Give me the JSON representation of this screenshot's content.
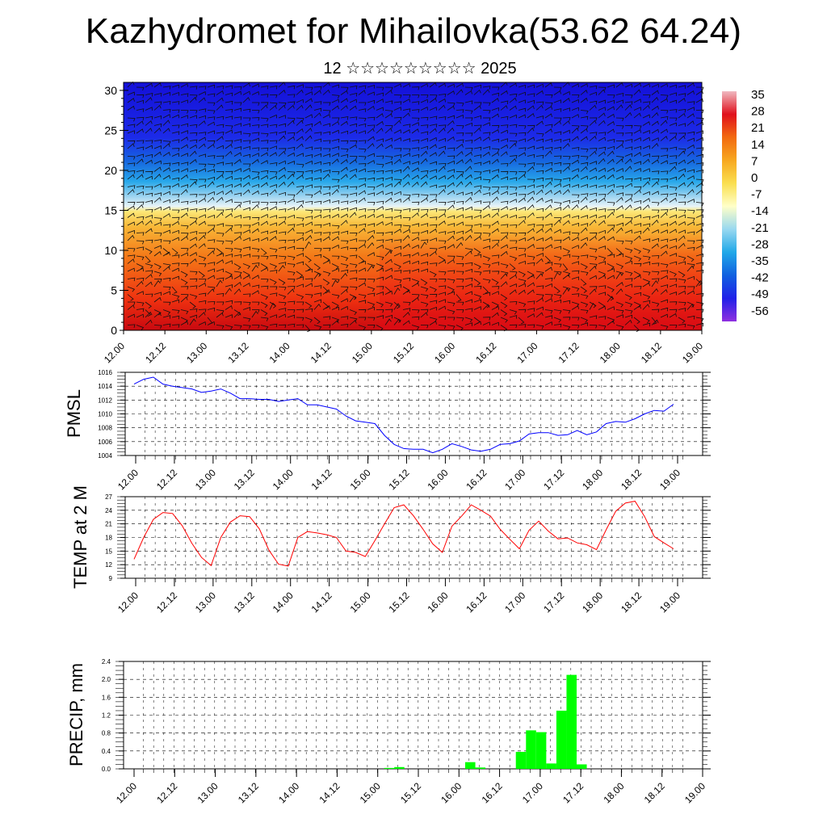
{
  "title": "Kazhydromet for Mihailovka(53.62 64.24)",
  "subtitle": "12 ☆☆☆☆☆☆☆☆☆ 2025",
  "time_labels": [
    "12.00",
    "12.12",
    "13.00",
    "13.12",
    "14.00",
    "14.12",
    "15.00",
    "15.12",
    "16.00",
    "16.12",
    "17.00",
    "17.12",
    "18.00",
    "18.12",
    "19.00"
  ],
  "chart_data": [
    {
      "type": "heatmap",
      "name_hidden": true,
      "x_ticks": [
        "12.00",
        "12.12",
        "13.00",
        "13.12",
        "14.00",
        "14.12",
        "15.00",
        "15.12",
        "16.00",
        "16.12",
        "17.00",
        "17.12",
        "18.00",
        "18.12",
        "19.00"
      ],
      "ylim": [
        0,
        31
      ],
      "y_ticks": [
        0,
        5,
        10,
        15,
        20,
        25,
        30
      ],
      "colorbar_labels": [
        "35",
        "28",
        "21",
        "14",
        "7",
        "0",
        "-7",
        "-14",
        "-21",
        "-28",
        "-35",
        "-42",
        "-49",
        "-56"
      ],
      "colorbar_colors": [
        "#f0b8c0",
        "#e0101c",
        "#f26a10",
        "#f7a820",
        "#fadf50",
        "#ffffc8",
        "#98d8f0",
        "#20a8e8",
        "#1060e0",
        "#2020e8",
        "#9030e0"
      ],
      "overlay": "wind barbs"
    },
    {
      "type": "line",
      "ylabel": "PMSL",
      "color": "#0000ff",
      "ylim": [
        1004,
        1016
      ],
      "y_ticks": [
        "1004",
        "1006",
        "1008",
        "1010",
        "1012",
        "1014",
        "1016"
      ],
      "x_ticks": [
        "12.00",
        "12.12",
        "13.00",
        "13.12",
        "14.00",
        "14.12",
        "15.00",
        "15.12",
        "16.00",
        "16.12",
        "17.00",
        "17.12",
        "18.00",
        "18.12",
        "19.00"
      ],
      "values": [
        1014.3,
        1015.0,
        1015.3,
        1014.3,
        1014.0,
        1013.8,
        1013.6,
        1013.1,
        1013.3,
        1013.6,
        1013.0,
        1012.2,
        1012.2,
        1012.1,
        1012.1,
        1011.8,
        1012.0,
        1012.2,
        1011.3,
        1011.3,
        1011.0,
        1010.7,
        1009.7,
        1009.0,
        1008.8,
        1008.6,
        1006.9,
        1005.6,
        1005.0,
        1004.9,
        1004.9,
        1004.4,
        1004.9,
        1005.7,
        1005.3,
        1004.8,
        1004.6,
        1004.9,
        1005.6,
        1005.7,
        1006.1,
        1007.1,
        1007.3,
        1007.3,
        1006.9,
        1007.0,
        1007.6,
        1007.0,
        1007.4,
        1008.6,
        1008.9,
        1008.8,
        1009.3,
        1010.0,
        1010.5,
        1010.4,
        1011.4
      ]
    },
    {
      "type": "line",
      "ylabel": "TEMP at 2 M",
      "color": "#ff0000",
      "ylim": [
        9,
        27
      ],
      "y_ticks": [
        "9",
        "12",
        "15",
        "18",
        "21",
        "24",
        "27"
      ],
      "x_ticks": [
        "12.00",
        "12.12",
        "13.00",
        "13.12",
        "14.00",
        "14.12",
        "15.00",
        "15.12",
        "16.00",
        "16.12",
        "17.00",
        "17.12",
        "18.00",
        "18.12",
        "19.00"
      ],
      "values": [
        13.2,
        18.0,
        22.0,
        23.5,
        23.3,
        20.6,
        16.7,
        13.6,
        11.8,
        18.0,
        21.4,
        22.8,
        22.6,
        19.9,
        15.2,
        12.1,
        11.7,
        18.0,
        19.3,
        19.0,
        18.6,
        18.0,
        15.0,
        14.7,
        13.8,
        17.3,
        21.0,
        24.6,
        25.2,
        22.8,
        19.8,
        16.6,
        14.7,
        20.5,
        22.7,
        25.2,
        24.0,
        22.7,
        19.8,
        17.6,
        15.5,
        19.6,
        21.6,
        19.4,
        17.7,
        17.9,
        16.8,
        16.4,
        15.3,
        19.7,
        23.8,
        25.6,
        26.0,
        22.6,
        18.2,
        16.8,
        15.5
      ]
    },
    {
      "type": "bar",
      "ylabel": "PRECIP, mm",
      "color": "#00ff00",
      "ylim": [
        0,
        2.4
      ],
      "y_ticks": [
        "0.0",
        "0.4",
        "0.8",
        "1.2",
        "1.6",
        "2.0",
        "2.4"
      ],
      "x_ticks": [
        "12.00",
        "12.12",
        "13.00",
        "13.12",
        "14.00",
        "14.12",
        "15.00",
        "15.12",
        "16.00",
        "16.12",
        "17.00",
        "17.12",
        "18.00",
        "18.12",
        "19.00"
      ],
      "bin_hours": 3,
      "values": [
        0,
        0,
        0,
        0,
        0,
        0,
        0,
        0,
        0,
        0,
        0,
        0,
        0,
        0,
        0,
        0,
        0,
        0,
        0,
        0,
        0,
        0,
        0,
        0,
        0,
        0.02,
        0.04,
        0,
        0,
        0,
        0,
        0,
        0,
        0.15,
        0.03,
        0,
        0,
        0,
        0.38,
        0.86,
        0.82,
        0.12,
        1.3,
        2.1,
        0.1,
        0,
        0,
        0,
        0,
        0,
        0,
        0,
        0,
        0,
        0,
        0
      ]
    }
  ]
}
